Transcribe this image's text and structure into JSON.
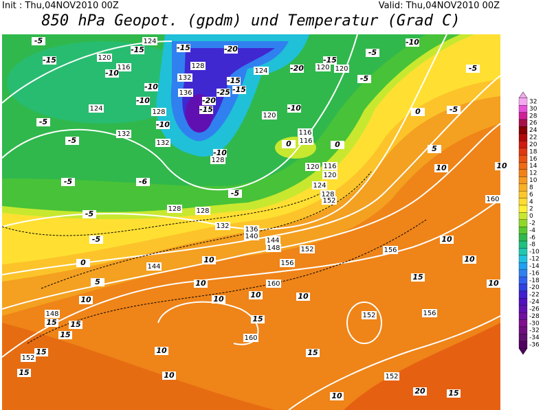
{
  "header": {
    "init": "Init : Thu,04NOV2010 00Z",
    "valid": "Valid: Thu,04NOV2010 00Z",
    "title": "850 hPa Geopot. (gpdm) und Temperatur (Grad C)"
  },
  "geopotential_labels": [
    124,
    120,
    116,
    132,
    128,
    136,
    124,
    120,
    120,
    128,
    124,
    132,
    120,
    116,
    116,
    120,
    116,
    120,
    124,
    128,
    152,
    128,
    128,
    132,
    136,
    140,
    144,
    148,
    152,
    156,
    160,
    156,
    152,
    160,
    156,
    148,
    152,
    144,
    152,
    160,
    132,
    128
  ],
  "temperature_labels": [
    -15,
    -15,
    -20,
    -20,
    -15,
    -5,
    -15,
    -10,
    -10,
    -10,
    -10,
    -15,
    -20,
    -25,
    -15,
    -15,
    0,
    0,
    5,
    10,
    10,
    -5,
    -5,
    -5,
    -6,
    -5,
    -5,
    -5,
    0,
    5,
    10,
    10,
    10,
    10,
    10,
    10,
    15,
    15,
    15,
    15,
    15,
    15,
    10,
    10,
    10,
    10,
    15,
    10,
    20,
    15,
    10,
    15,
    0,
    -5,
    -10,
    -5,
    -5,
    -10,
    -10,
    -5
  ],
  "colorbar": {
    "levels": [
      32,
      30,
      28,
      26,
      24,
      22,
      20,
      18,
      16,
      14,
      12,
      10,
      8,
      6,
      4,
      2,
      0,
      -2,
      -4,
      -6,
      -8,
      -10,
      -12,
      -14,
      -16,
      -18,
      -20,
      -22,
      -24,
      -26,
      -28,
      -30,
      -32,
      -34,
      -36
    ],
    "colors": [
      "#f4a8f0",
      "#e850d8",
      "#d02098",
      "#a81048",
      "#880000",
      "#b00808",
      "#d01c10",
      "#e03812",
      "#e85212",
      "#ee6a14",
      "#f28018",
      "#f69a20",
      "#f8b024",
      "#fcc82c",
      "#ffdc30",
      "#fff034",
      "#c8e830",
      "#90d828",
      "#58c830",
      "#30b850",
      "#20c080",
      "#20c8b0",
      "#20c0e0",
      "#20a0f0",
      "#3080f0",
      "#3060f0",
      "#3040e0",
      "#4020d0",
      "#5010c0",
      "#6010b0",
      "#7010a0",
      "#801090",
      "#701080",
      "#601070",
      "#500060"
    ]
  }
}
